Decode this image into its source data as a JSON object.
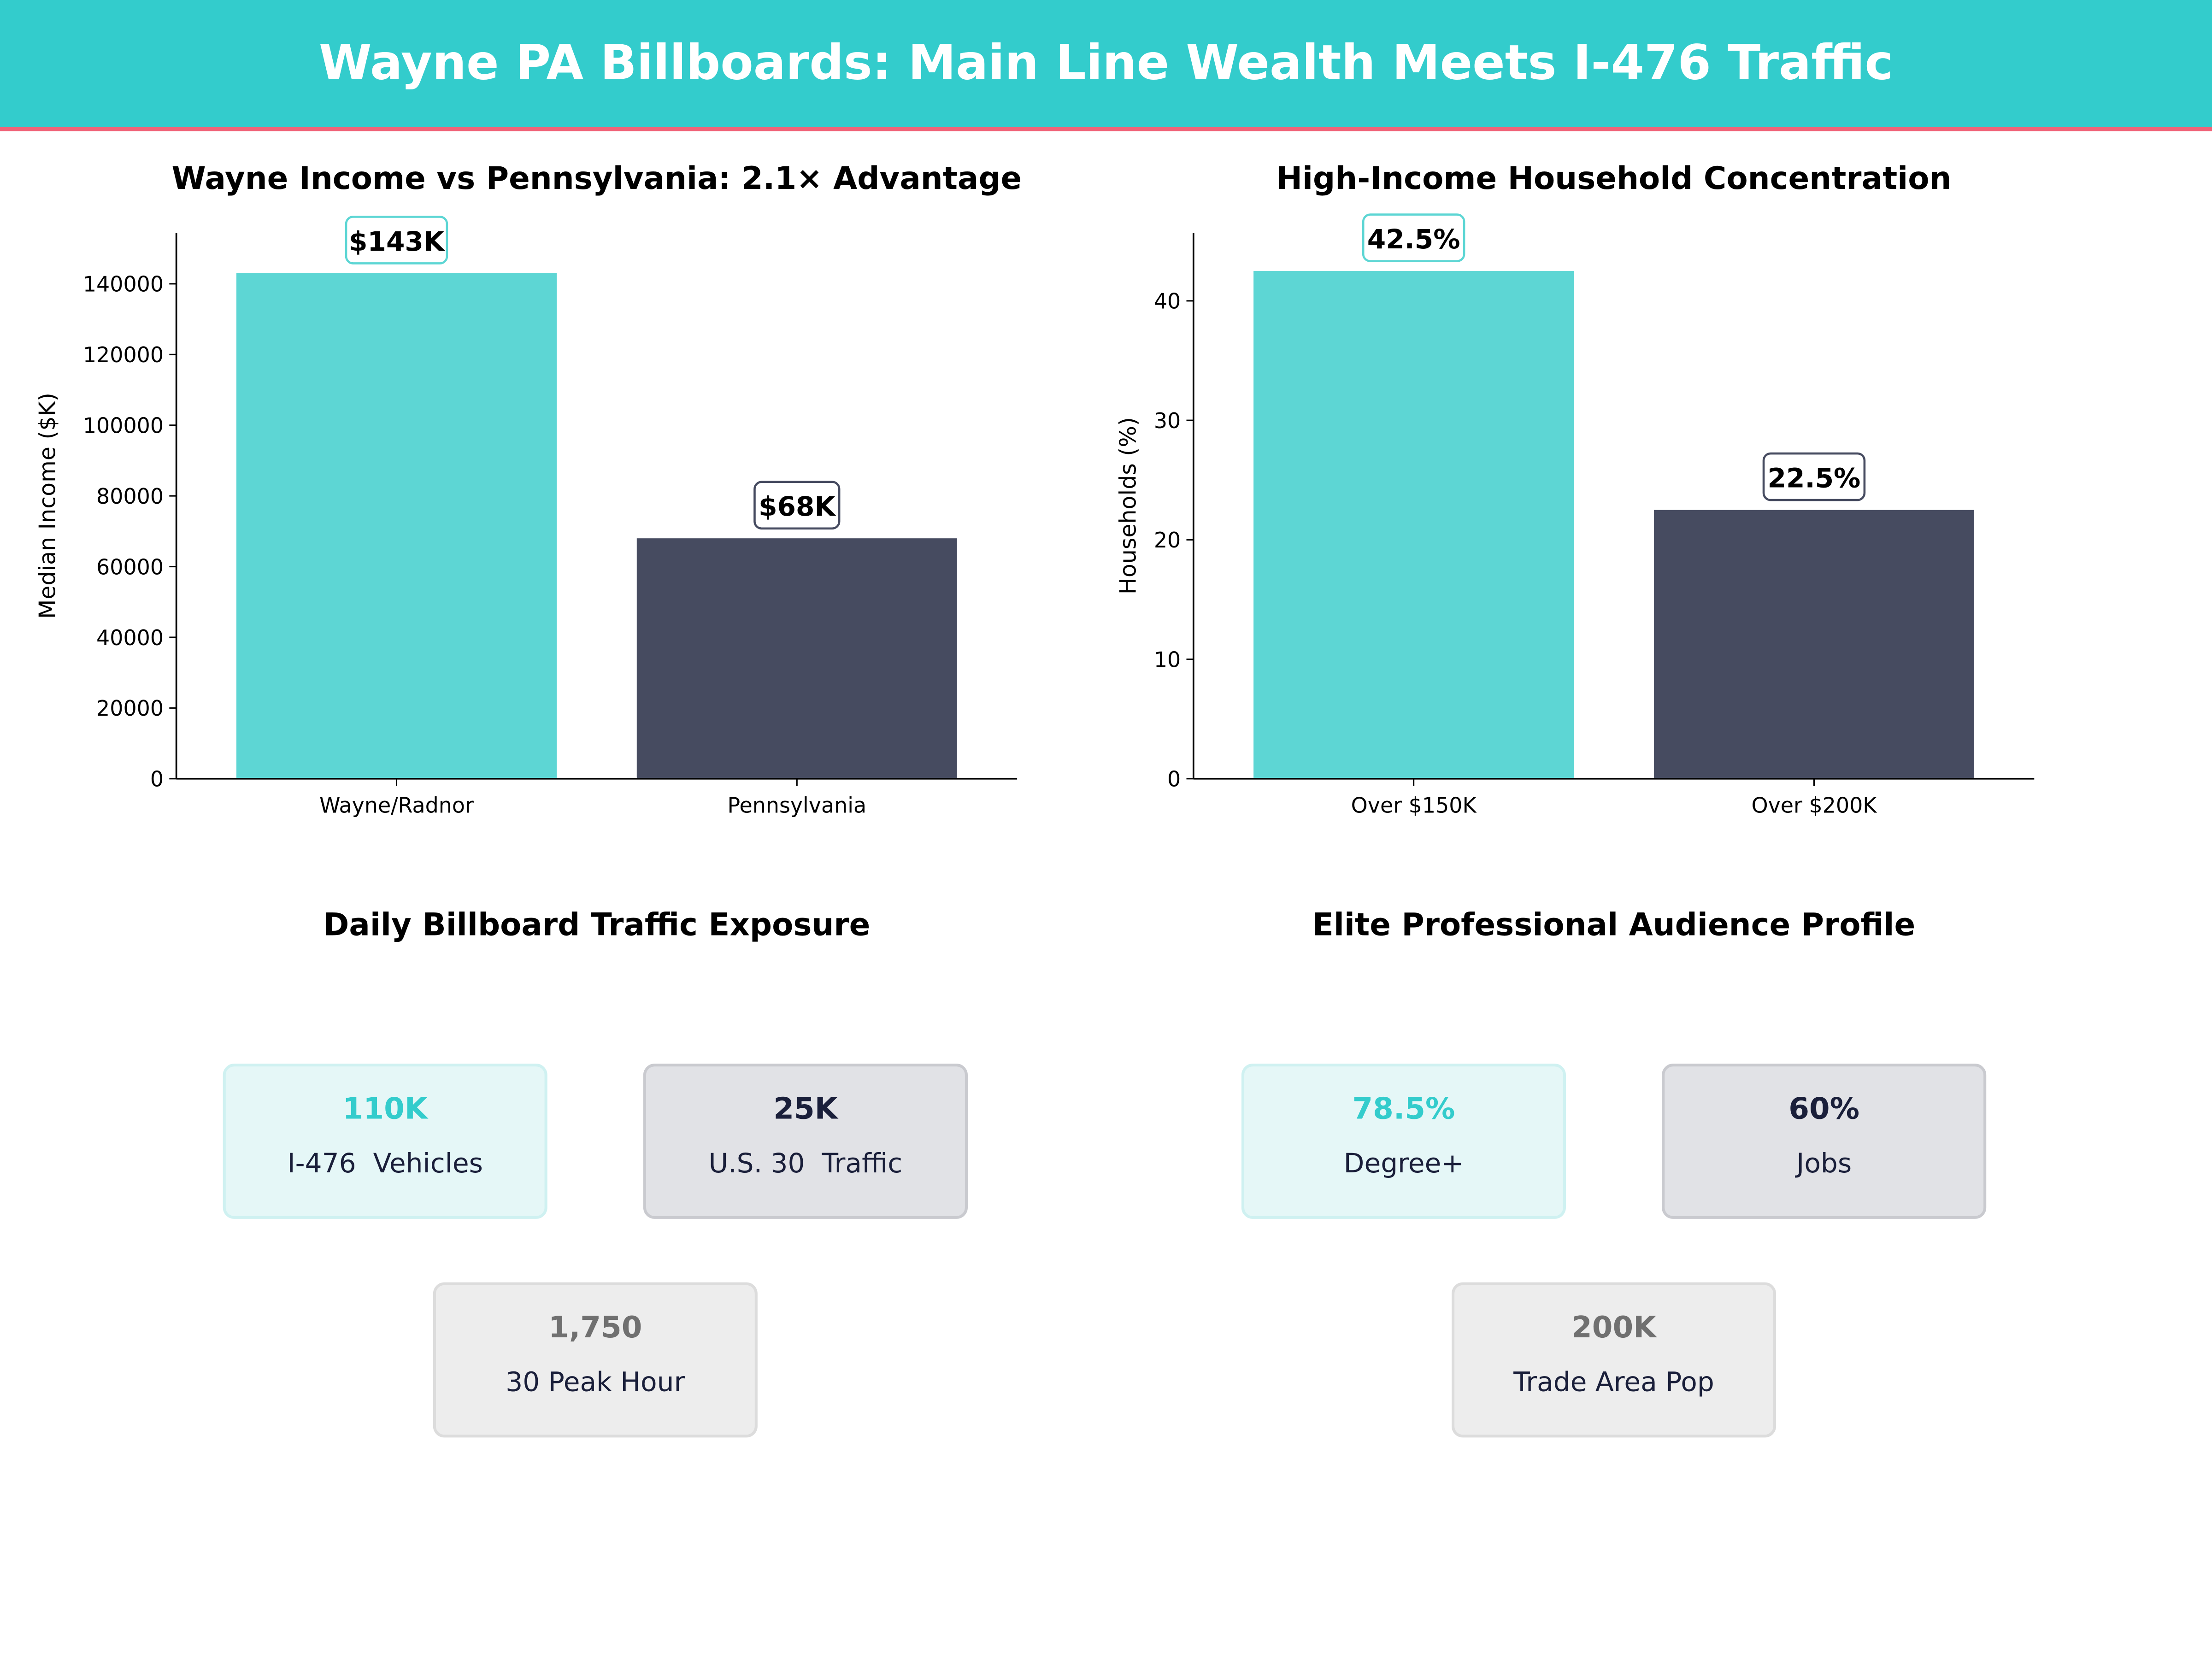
{
  "header": {
    "title": "Wayne PA Billboards: Main Line Wealth Meets I-476 Traffic",
    "bg_color": "#33CCCC",
    "accent_line_color": "#F06478"
  },
  "chart_data": [
    {
      "type": "bar",
      "title": "Wayne Income vs Pennsylvania: 2.1× Advantage",
      "xlabel": "",
      "ylabel": "Median Income ($K)",
      "categories": [
        "Wayne/Radnor",
        "Pennsylvania"
      ],
      "values": [
        143000,
        68000
      ],
      "data_labels": [
        "$143K",
        "$68K"
      ],
      "colors": [
        "#5DD6D4",
        "#464B60"
      ],
      "ylim": [
        0,
        154440
      ],
      "yticks": [
        0,
        20000,
        40000,
        60000,
        80000,
        100000,
        120000,
        140000
      ],
      "grid": false
    },
    {
      "type": "bar",
      "title": "High-Income Household Concentration",
      "xlabel": "",
      "ylabel": "Households (%)",
      "categories": [
        "Over $150K",
        "Over $200K"
      ],
      "values": [
        42.5,
        22.5
      ],
      "data_labels": [
        "42.5%",
        "22.5%"
      ],
      "colors": [
        "#5DD6D4",
        "#464B60"
      ],
      "ylim": [
        0,
        45.7
      ],
      "yticks": [
        0,
        10,
        20,
        30,
        40
      ],
      "grid": false
    }
  ],
  "traffic": {
    "title": "Daily Billboard Traffic Exposure",
    "cards": [
      {
        "value": "110K",
        "label": "I-476  Vehicles"
      },
      {
        "value": "25K",
        "label": "U.S. 30  Traffic"
      },
      {
        "value": "1,750",
        "label": "30 Peak Hour"
      }
    ]
  },
  "audience": {
    "title": "Elite Professional Audience Profile",
    "cards": [
      {
        "value": "78.5%",
        "label": "Degree+"
      },
      {
        "value": "60%",
        "label": "Jobs"
      },
      {
        "value": "200K",
        "label": "Trade Area Pop"
      }
    ]
  }
}
